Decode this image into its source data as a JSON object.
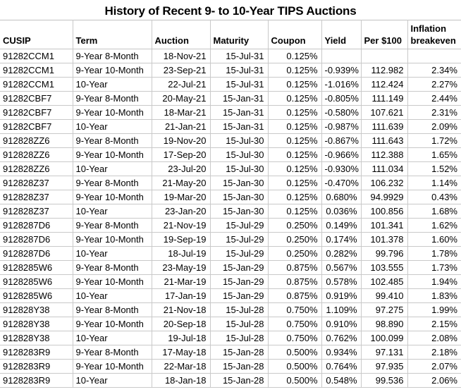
{
  "chart_data": {
    "type": "table",
    "title": "History of Recent 9- to 10-Year TIPS Auctions",
    "columns": [
      {
        "id": "cusip",
        "label": "CUSIP",
        "align": "left"
      },
      {
        "id": "term",
        "label": "Term",
        "align": "left"
      },
      {
        "id": "auction",
        "label": "Auction",
        "align": "right"
      },
      {
        "id": "maturity",
        "label": "Maturity",
        "align": "right"
      },
      {
        "id": "coupon",
        "label": "Coupon",
        "align": "right"
      },
      {
        "id": "yield",
        "label": "Yield",
        "align": "right"
      },
      {
        "id": "per-100",
        "label": "Per $100",
        "align": "right"
      },
      {
        "id": "breakeven",
        "label": "Inflation breakeven",
        "align": "right"
      }
    ],
    "rows": [
      [
        "91282CCM1",
        "9-Year 8-Month",
        "18-Nov-21",
        "15-Jul-31",
        "0.125%",
        "",
        "",
        ""
      ],
      [
        "91282CCM1",
        "9-Year 10-Month",
        "23-Sep-21",
        "15-Jul-31",
        "0.125%",
        "-0.939%",
        "112.982",
        "2.34%"
      ],
      [
        "91282CCM1",
        "10-Year",
        "22-Jul-21",
        "15-Jul-31",
        "0.125%",
        "-1.016%",
        "112.424",
        "2.27%"
      ],
      [
        "91282CBF7",
        "9-Year 8-Month",
        "20-May-21",
        "15-Jan-31",
        "0.125%",
        "-0.805%",
        "111.149",
        "2.44%"
      ],
      [
        "91282CBF7",
        "9-Year 10-Month",
        "18-Mar-21",
        "15-Jan-31",
        "0.125%",
        "-0.580%",
        "107.621",
        "2.31%"
      ],
      [
        "91282CBF7",
        "10-Year",
        "21-Jan-21",
        "15-Jan-31",
        "0.125%",
        "-0.987%",
        "111.639",
        "2.09%"
      ],
      [
        "912828ZZ6",
        "9-Year 8-Month",
        "19-Nov-20",
        "15-Jul-30",
        "0.125%",
        "-0.867%",
        "111.643",
        "1.72%"
      ],
      [
        "912828ZZ6",
        "9-Year 10-Month",
        "17-Sep-20",
        "15-Jul-30",
        "0.125%",
        "-0.966%",
        "112.388",
        "1.65%"
      ],
      [
        "912828ZZ6",
        "10-Year",
        "23-Jul-20",
        "15-Jul-30",
        "0.125%",
        "-0.930%",
        "111.034",
        "1.52%"
      ],
      [
        "912828Z37",
        "9-Year 8-Month",
        "21-May-20",
        "15-Jan-30",
        "0.125%",
        "-0.470%",
        "106.232",
        "1.14%"
      ],
      [
        "912828Z37",
        "9-Year 10-Month",
        "19-Mar-20",
        "15-Jan-30",
        "0.125%",
        "0.680%",
        "94.9929",
        "0.43%"
      ],
      [
        "912828Z37",
        "10-Year",
        "23-Jan-20",
        "15-Jan-30",
        "0.125%",
        "0.036%",
        "100.856",
        "1.68%"
      ],
      [
        "9128287D6",
        "9-Year 8-Month",
        "21-Nov-19",
        "15-Jul-29",
        "0.250%",
        "0.149%",
        "101.341",
        "1.62%"
      ],
      [
        "9128287D6",
        "9-Year 10-Month",
        "19-Sep-19",
        "15-Jul-29",
        "0.250%",
        "0.174%",
        "101.378",
        "1.60%"
      ],
      [
        "9128287D6",
        "10-Year",
        "18-Jul-19",
        "15-Jul-29",
        "0.250%",
        "0.282%",
        "99.796",
        "1.78%"
      ],
      [
        "9128285W6",
        "9-Year 8-Month",
        "23-May-19",
        "15-Jan-29",
        "0.875%",
        "0.567%",
        "103.555",
        "1.73%"
      ],
      [
        "9128285W6",
        "9-Year 10-Month",
        "21-Mar-19",
        "15-Jan-29",
        "0.875%",
        "0.578%",
        "102.485",
        "1.94%"
      ],
      [
        "9128285W6",
        "10-Year",
        "17-Jan-19",
        "15-Jan-29",
        "0.875%",
        "0.919%",
        "99.410",
        "1.83%"
      ],
      [
        "912828Y38",
        "9-Year 8-Month",
        "21-Nov-18",
        "15-Jul-28",
        "0.750%",
        "1.109%",
        "97.275",
        "1.99%"
      ],
      [
        "912828Y38",
        "9-Year 10-Month",
        "20-Sep-18",
        "15-Jul-28",
        "0.750%",
        "0.910%",
        "98.890",
        "2.15%"
      ],
      [
        "912828Y38",
        "10-Year",
        "19-Jul-18",
        "15-Jul-28",
        "0.750%",
        "0.762%",
        "100.099",
        "2.08%"
      ],
      [
        "9128283R9",
        "9-Year 8-Month",
        "17-May-18",
        "15-Jan-28",
        "0.500%",
        "0.934%",
        "97.131",
        "2.18%"
      ],
      [
        "9128283R9",
        "9-Year 10-Month",
        "22-Mar-18",
        "15-Jan-28",
        "0.500%",
        "0.764%",
        "97.935",
        "2.07%"
      ],
      [
        "9128283R9",
        "10-Year",
        "18-Jan-18",
        "15-Jan-28",
        "0.500%",
        "0.548%",
        "99.536",
        "2.06%"
      ]
    ],
    "colors": {
      "text": "#000000",
      "gridline": "#c9c9c9",
      "background": "#ffffff"
    },
    "layout_hints": {
      "grid": "on",
      "header_rows": 1,
      "notes": "first data row has empty Yield, Per $100 and Inflation breakeven cells"
    }
  }
}
